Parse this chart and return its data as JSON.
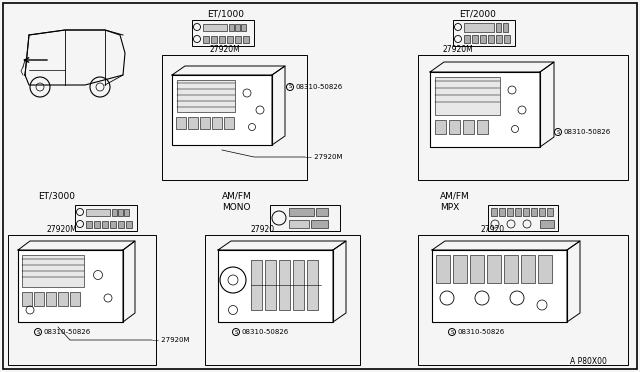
{
  "bg_color": "#f5f5f5",
  "border_color": "#000000",
  "diagram_code": "A P80X00",
  "et1000": "ET/1000",
  "et2000": "ET/2000",
  "et3000": "ET/3000",
  "amfm_mono_l1": "AM/FM",
  "amfm_mono_l2": "MONO",
  "amfm_mpx_l1": "AM/FM",
  "amfm_mpx_l2": "MPX",
  "part_m": "27920M",
  "part_nm": "27920",
  "screw": "08310-50826"
}
